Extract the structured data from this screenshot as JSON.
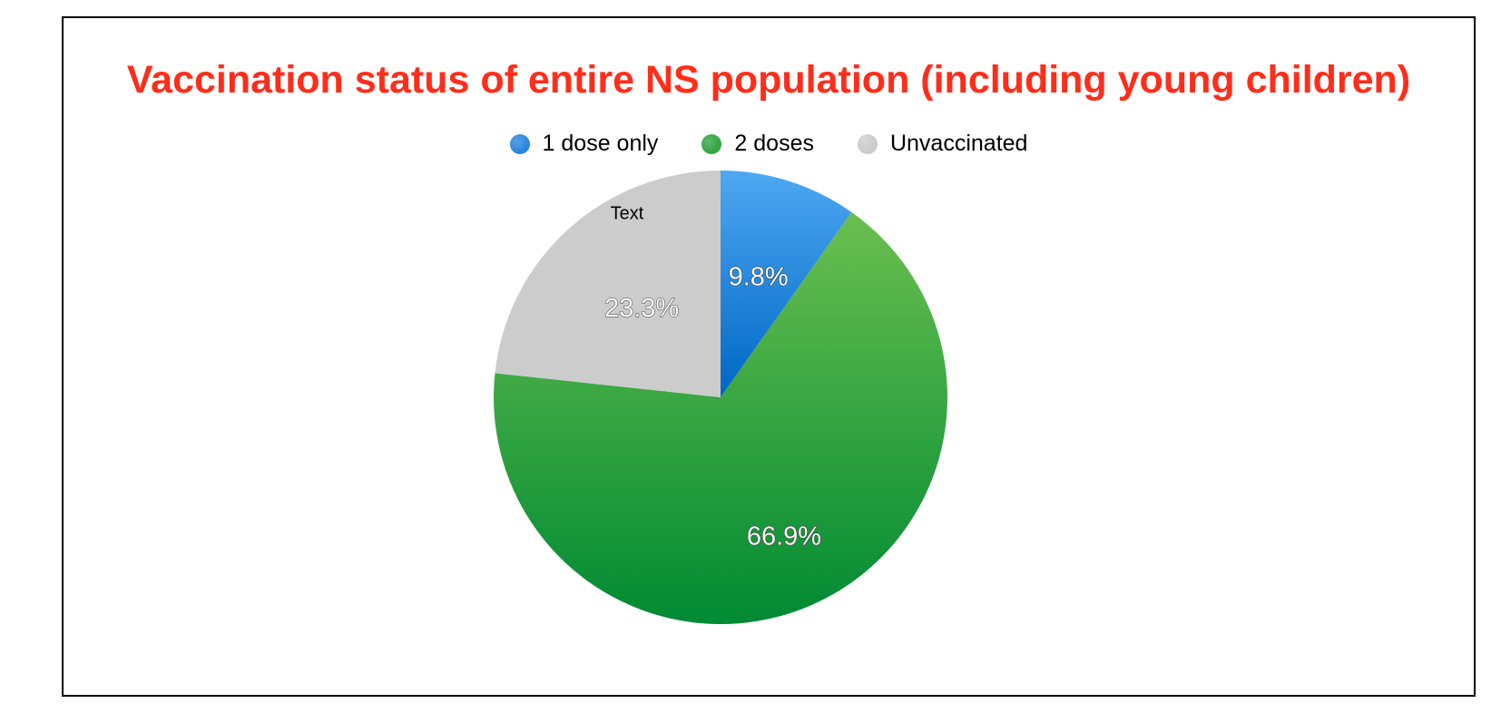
{
  "chart_data": {
    "type": "pie",
    "title": "Vaccination status of entire NS population (including young children)",
    "title_color": "#ff2d1a",
    "categories": [
      "1 dose only",
      "2 doses",
      "Unvaccinated"
    ],
    "values": [
      9.8,
      66.9,
      23.3
    ],
    "labels": [
      "9.8%",
      "66.9%",
      "23.3%"
    ],
    "colors": [
      "#2b86dc",
      "#35a545",
      "#cccccc"
    ],
    "legend": "top-center",
    "annotation": "Text"
  }
}
